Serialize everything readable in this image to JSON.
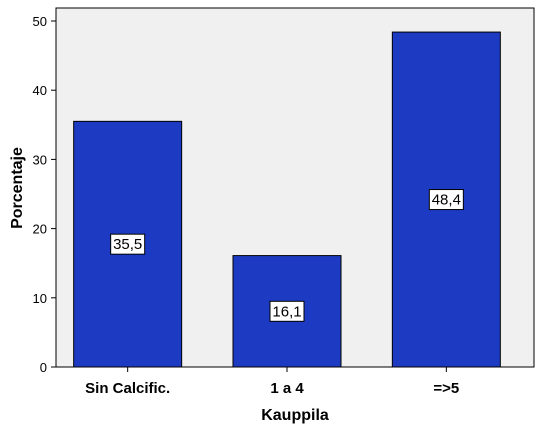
{
  "chart_data": {
    "type": "bar",
    "categories": [
      "Sin Calcific.",
      "1 a 4",
      "=>5"
    ],
    "values": [
      35.5,
      16.1,
      48.4
    ],
    "value_labels": [
      "35,5",
      "16,1",
      "48,4"
    ],
    "xlabel": "Kauppila",
    "ylabel": "Porcentaje",
    "ylim": [
      0,
      50
    ],
    "yticks": [
      "0",
      "10",
      "20",
      "30",
      "40",
      "50"
    ],
    "grid": false,
    "legend": "none",
    "colors": {
      "bar_fill": "#1c3bc2",
      "bar_stroke": "#000000",
      "plot_background": "#f0f0f0",
      "label_box_fill": "#ffffff"
    }
  }
}
